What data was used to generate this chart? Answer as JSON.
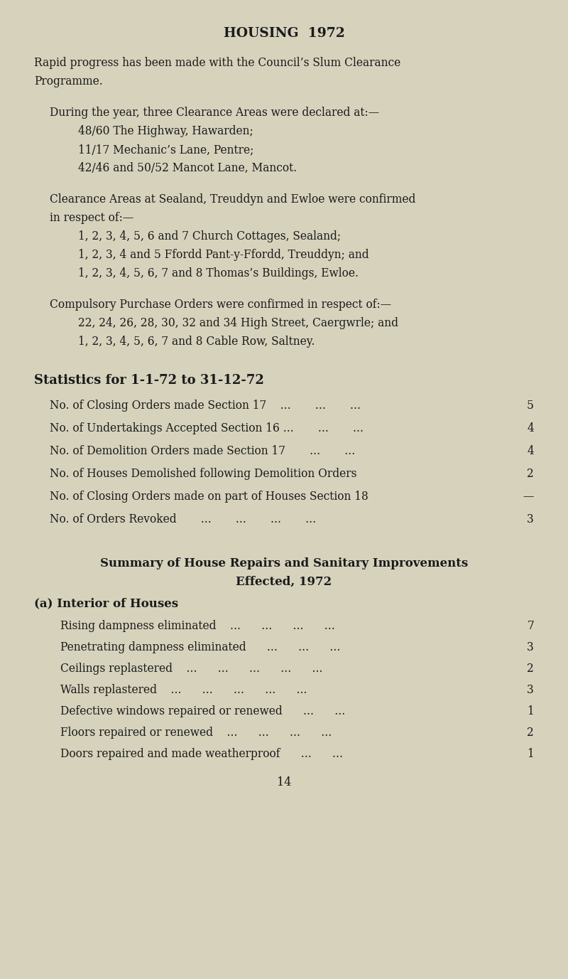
{
  "bg_color": "#d6d2bc",
  "title": "HOUSING  1972",
  "page_number": "14",
  "body_color": "#1a1a1a",
  "title_fontsize": 13.5,
  "body_fontsize": 11.2,
  "stats_header": "Statistics for 1-1-72 to 31-12-72",
  "stats_labels": [
    "No. of Closing Orders made Section 17    ...       ...       ...",
    "No. of Undertakings Accepted Section 16 ...       ...       ...",
    "No. of Demolition Orders made Section 17       ...       ...",
    "No. of Houses Demolished following Demolition Orders",
    "No. of Closing Orders made on part of Houses Section 18",
    "No. of Orders Revoked       ...       ...       ...       ..."
  ],
  "stats_values": [
    "5",
    "4",
    "4",
    "2",
    "—",
    "3"
  ],
  "summary_title1": "Summary of House Repairs and Sanitary Improvements",
  "summary_title2": "Effected, 1972",
  "summary_subheader": "(a) Interior of Houses",
  "summary_labels": [
    "Rising dampness eliminated    ...      ...      ...      ...",
    "Penetrating dampness eliminated      ...      ...      ...",
    "Ceilings replastered    ...      ...      ...      ...      ...",
    "Walls replastered    ...      ...      ...      ...      ...",
    "Defective windows repaired or renewed      ...      ...",
    "Floors repaired or renewed    ...      ...      ...      ...",
    "Doors repaired and made weatherproof      ...      ..."
  ],
  "summary_values": [
    "7",
    "3",
    "2",
    "3",
    "1",
    "2",
    "1"
  ]
}
